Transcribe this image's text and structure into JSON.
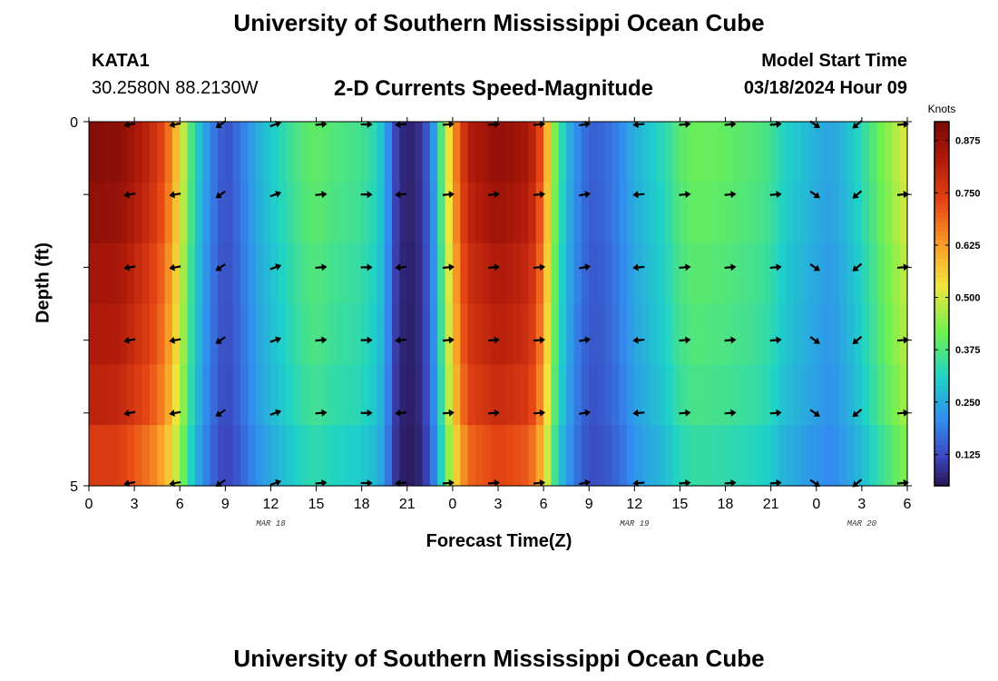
{
  "header": {
    "title": "University of Southern Mississippi Ocean Cube",
    "station_id": "KATA1",
    "coords": "30.2580N  88.2130W",
    "subtitle": "2-D Currents Speed-Magnitude",
    "start_label": "Model Start Time",
    "start_value": "03/18/2024 Hour 09"
  },
  "footer": {
    "title": "University of Southern Mississippi Ocean Cube"
  },
  "chart_data": {
    "type": "heatmap",
    "title": "2-D Currents Speed-Magnitude",
    "xlabel": "Forecast Time(Z)",
    "ylabel": "Depth (ft)",
    "x_hours": [
      0,
      54
    ],
    "ylim": [
      0,
      5
    ],
    "y_ticks": [
      "0",
      "5"
    ],
    "x_tick_labels": [
      "0",
      "3",
      "6",
      "9",
      "12",
      "15",
      "18",
      "21",
      "0",
      "3",
      "6",
      "9",
      "12",
      "15",
      "18",
      "21",
      "0",
      "3",
      "6"
    ],
    "date_labels": [
      {
        "text": "MAR 18",
        "hour": 12
      },
      {
        "text": "MAR 19",
        "hour": 36
      },
      {
        "text": "MAR 20",
        "hour": 51
      }
    ],
    "colorbar": {
      "unit": "Knots",
      "min": 0.05,
      "max": 0.92,
      "ticks": [
        "0.125",
        "0.250",
        "0.375",
        "0.500",
        "0.625",
        "0.750",
        "0.875"
      ],
      "tick_values": [
        0.125,
        0.25,
        0.375,
        0.5,
        0.625,
        0.75,
        0.875
      ]
    },
    "depth_layers": 6,
    "speed_profile": {
      "hours": [
        0,
        2,
        4,
        5,
        6,
        6.5,
        7,
        8,
        9,
        10,
        11,
        12,
        14,
        15,
        16,
        18,
        19,
        19.6,
        20,
        20.6,
        21.4,
        22,
        22.6,
        23.2,
        24,
        25,
        27,
        29,
        29.5,
        30,
        30.5,
        31,
        32,
        33,
        34,
        35,
        36,
        38,
        39,
        40,
        42,
        44,
        45,
        46,
        48,
        49,
        50,
        51,
        52,
        53,
        54
      ],
      "knots": [
        0.9,
        0.89,
        0.8,
        0.72,
        0.55,
        0.42,
        0.32,
        0.2,
        0.13,
        0.18,
        0.25,
        0.3,
        0.38,
        0.4,
        0.38,
        0.36,
        0.32,
        0.26,
        0.14,
        0.08,
        0.07,
        0.1,
        0.18,
        0.36,
        0.62,
        0.82,
        0.88,
        0.84,
        0.78,
        0.68,
        0.5,
        0.36,
        0.22,
        0.15,
        0.16,
        0.2,
        0.26,
        0.33,
        0.39,
        0.41,
        0.4,
        0.38,
        0.36,
        0.31,
        0.26,
        0.24,
        0.28,
        0.33,
        0.4,
        0.46,
        0.52
      ]
    },
    "layer_scale": [
      1.0,
      0.98,
      0.95,
      0.93,
      0.9,
      0.84
    ],
    "arrow_hours": [
      2.7,
      5.7,
      8.7,
      12.3,
      15.3,
      18.3,
      20.6,
      23.7,
      26.7,
      29.7,
      32.7,
      36.3,
      39.3,
      42.3,
      45.3,
      47.9,
      50.7,
      53.7
    ],
    "arrow_depths_ft": [
      0,
      1,
      2,
      3,
      4,
      5
    ],
    "arrow_directions_deg": [
      190,
      190,
      215,
      20,
      5,
      0,
      185,
      5,
      5,
      5,
      10,
      185,
      5,
      5,
      5,
      325,
      220,
      5
    ]
  }
}
